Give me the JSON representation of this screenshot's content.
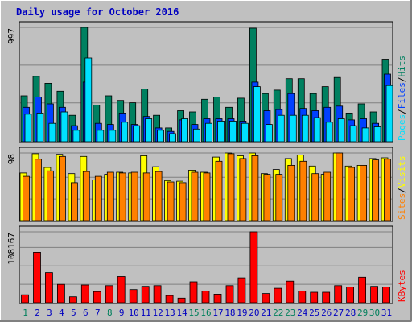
{
  "title": "Daily usage for October 2016",
  "colors": {
    "background": "#c0c0c0",
    "grid": "#808080",
    "title": "#0000c0",
    "hits": "#008060",
    "files": "#0040ff",
    "pages": "#00e0ff",
    "visits": "#ffff00",
    "sites": "#ff8000",
    "kbytes": "#ff0000",
    "weekend_day": "#00805c",
    "weekday": "#0000c0"
  },
  "chart_data": [
    {
      "type": "bar",
      "panel": "hits-files-pages",
      "ylabel_parts": [
        "Pages",
        "/",
        "Files",
        "/",
        "Hits"
      ],
      "max_label": "997",
      "ylim": [
        0,
        997
      ],
      "categories": [
        "1",
        "2",
        "3",
        "4",
        "5",
        "6",
        "7",
        "8",
        "9",
        "10",
        "11",
        "12",
        "13",
        "14",
        "15",
        "16",
        "17",
        "18",
        "19",
        "20",
        "21",
        "22",
        "23",
        "24",
        "25",
        "26",
        "27",
        "28",
        "29",
        "30",
        "31"
      ],
      "series": [
        {
          "name": "Hits",
          "values": [
            400,
            570,
            510,
            440,
            230,
            997,
            320,
            400,
            360,
            340,
            460,
            230,
            120,
            270,
            260,
            370,
            390,
            300,
            380,
            990,
            420,
            450,
            550,
            550,
            420,
            480,
            560,
            250,
            330,
            260,
            720
          ]
        },
        {
          "name": "Files",
          "values": [
            300,
            390,
            330,
            300,
            140,
            520,
            160,
            150,
            250,
            150,
            220,
            120,
            90,
            190,
            150,
            200,
            200,
            200,
            180,
            520,
            270,
            280,
            420,
            290,
            270,
            300,
            310,
            190,
            200,
            160,
            590
          ]
        },
        {
          "name": "Pages",
          "values": [
            240,
            250,
            160,
            260,
            100,
            730,
            100,
            100,
            170,
            140,
            200,
            100,
            70,
            200,
            110,
            160,
            180,
            180,
            160,
            480,
            150,
            230,
            230,
            230,
            210,
            170,
            200,
            140,
            120,
            130,
            490
          ]
        }
      ]
    },
    {
      "type": "bar",
      "panel": "visits-sites",
      "ylabel_parts": [
        "Sites",
        "/",
        "Visits"
      ],
      "max_label": "98",
      "ylim": [
        0,
        98
      ],
      "categories": [
        "1",
        "2",
        "3",
        "4",
        "5",
        "6",
        "7",
        "8",
        "9",
        "10",
        "11",
        "12",
        "13",
        "14",
        "15",
        "16",
        "17",
        "18",
        "19",
        "20",
        "21",
        "22",
        "23",
        "24",
        "25",
        "26",
        "27",
        "28",
        "29",
        "30",
        "31"
      ],
      "series": [
        {
          "name": "Visits",
          "values": [
            69,
            97,
            77,
            96,
            68,
            93,
            59,
            67,
            70,
            69,
            94,
            78,
            58,
            57,
            73,
            70,
            92,
            98,
            94,
            98,
            68,
            74,
            90,
            95,
            79,
            67,
            98,
            79,
            80,
            90,
            91
          ]
        },
        {
          "name": "Sites",
          "values": [
            64,
            89,
            72,
            93,
            55,
            71,
            64,
            70,
            69,
            70,
            69,
            71,
            56,
            55,
            70,
            69,
            86,
            97,
            90,
            94,
            67,
            67,
            80,
            86,
            68,
            70,
            98,
            77,
            80,
            88,
            89
          ]
        }
      ]
    },
    {
      "type": "bar",
      "panel": "kbytes",
      "ylabel_parts": [
        "KBytes"
      ],
      "max_label": "108167",
      "ylim": [
        0,
        108167
      ],
      "categories": [
        "1",
        "2",
        "3",
        "4",
        "5",
        "6",
        "7",
        "8",
        "9",
        "10",
        "11",
        "12",
        "13",
        "14",
        "15",
        "16",
        "17",
        "18",
        "19",
        "20",
        "21",
        "22",
        "23",
        "24",
        "25",
        "26",
        "27",
        "28",
        "29",
        "30",
        "31"
      ],
      "series": [
        {
          "name": "KBytes",
          "values": [
            12000,
            77000,
            46000,
            28000,
            9000,
            27000,
            17000,
            26000,
            40000,
            20000,
            25000,
            26000,
            11000,
            7000,
            32000,
            18000,
            13000,
            26000,
            38000,
            108167,
            14000,
            22000,
            33000,
            18000,
            16000,
            16000,
            26000,
            24000,
            39000,
            25000,
            24000
          ]
        }
      ]
    }
  ],
  "x_axis": {
    "labels": [
      "1",
      "2",
      "3",
      "4",
      "5",
      "6",
      "7",
      "8",
      "9",
      "10",
      "11",
      "12",
      "13",
      "14",
      "15",
      "16",
      "17",
      "18",
      "19",
      "20",
      "21",
      "22",
      "23",
      "24",
      "25",
      "26",
      "27",
      "28",
      "29",
      "30",
      "31"
    ],
    "weekend_days": [
      "1",
      "8",
      "15",
      "16",
      "22",
      "23",
      "29",
      "30"
    ]
  }
}
